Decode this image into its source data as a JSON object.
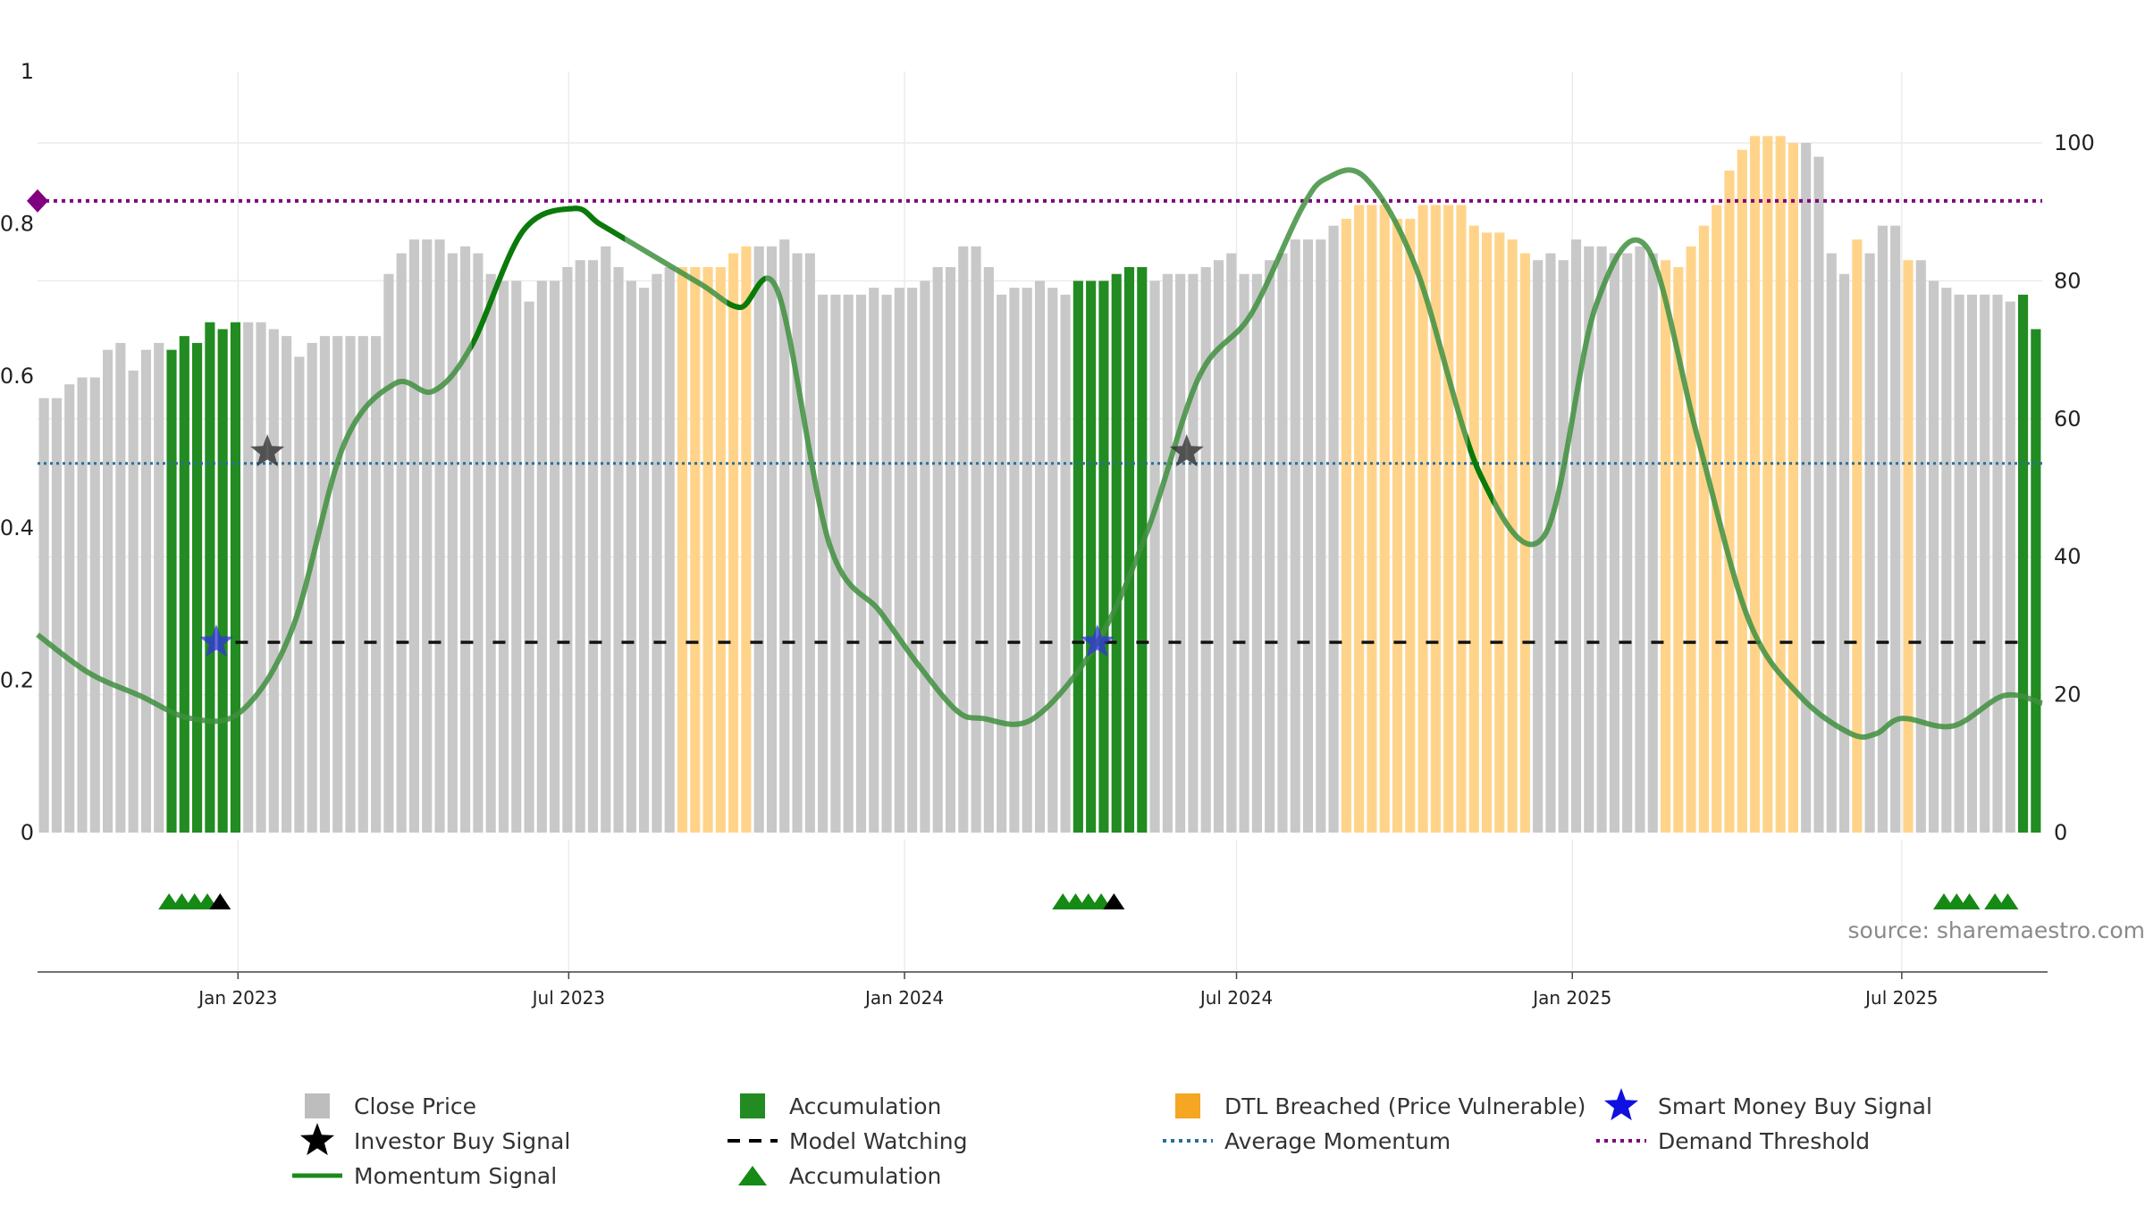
{
  "chart_data": {
    "type": "bar",
    "bars": {
      "count": 157,
      "close_price_right_axis": [
        63,
        63,
        65,
        66,
        66,
        70,
        71,
        67,
        70,
        71,
        70,
        72,
        71,
        74,
        73,
        74,
        74,
        74,
        73,
        72,
        69,
        71,
        72,
        72,
        72,
        72,
        72,
        81,
        84,
        86,
        86,
        86,
        84,
        85,
        84,
        81,
        80,
        80,
        77,
        80,
        80,
        82,
        83,
        83,
        85,
        82,
        80,
        79,
        81,
        82,
        82,
        82,
        82,
        82,
        84,
        85,
        85,
        85,
        86,
        84,
        84,
        78,
        78,
        78,
        78,
        79,
        78,
        79,
        79,
        80,
        82,
        82,
        85,
        85,
        82,
        78,
        79,
        79,
        80,
        79,
        78,
        80,
        80,
        80,
        81,
        82,
        82,
        80,
        81,
        81,
        81,
        82,
        83,
        84,
        81,
        81,
        83,
        84,
        86,
        86,
        86,
        88,
        89,
        91,
        91,
        91,
        89,
        89,
        91,
        91,
        91,
        91,
        88,
        87,
        87,
        86,
        84,
        83,
        84,
        83,
        86,
        85,
        85,
        84,
        84,
        85,
        84,
        83,
        82,
        85,
        88,
        91,
        96,
        99,
        101,
        101,
        101,
        100,
        100,
        98,
        84,
        81,
        86,
        84,
        88,
        88,
        83,
        83,
        80,
        79,
        78,
        78,
        78,
        78,
        77,
        78,
        73
      ],
      "category": [
        "grey",
        "grey",
        "grey",
        "grey",
        "grey",
        "grey",
        "grey",
        "grey",
        "grey",
        "grey",
        "green",
        "green",
        "green",
        "green",
        "green",
        "green",
        "grey",
        "grey",
        "grey",
        "grey",
        "grey",
        "grey",
        "grey",
        "grey",
        "grey",
        "grey",
        "grey",
        "grey",
        "grey",
        "grey",
        "grey",
        "grey",
        "grey",
        "grey",
        "grey",
        "grey",
        "grey",
        "grey",
        "grey",
        "grey",
        "grey",
        "grey",
        "grey",
        "grey",
        "grey",
        "grey",
        "grey",
        "grey",
        "grey",
        "grey",
        "orange",
        "orange",
        "orange",
        "orange",
        "orange",
        "orange",
        "grey",
        "grey",
        "grey",
        "grey",
        "grey",
        "grey",
        "grey",
        "grey",
        "grey",
        "grey",
        "grey",
        "grey",
        "grey",
        "grey",
        "grey",
        "grey",
        "grey",
        "grey",
        "grey",
        "grey",
        "grey",
        "grey",
        "grey",
        "grey",
        "grey",
        "green",
        "green",
        "green",
        "green",
        "green",
        "green",
        "grey",
        "grey",
        "grey",
        "grey",
        "grey",
        "grey",
        "grey",
        "grey",
        "grey",
        "grey",
        "grey",
        "grey",
        "grey",
        "grey",
        "grey",
        "orange",
        "orange",
        "orange",
        "orange",
        "orange",
        "orange",
        "orange",
        "orange",
        "orange",
        "orange",
        "orange",
        "orange",
        "orange",
        "orange",
        "orange",
        "grey",
        "grey",
        "grey",
        "grey",
        "grey",
        "grey",
        "grey",
        "grey",
        "grey",
        "grey",
        "orange",
        "orange",
        "orange",
        "orange",
        "orange",
        "orange",
        "orange",
        "orange",
        "orange",
        "orange",
        "orange",
        "grey",
        "grey",
        "grey",
        "grey",
        "orange",
        "grey",
        "grey",
        "grey",
        "orange",
        "grey",
        "grey",
        "grey",
        "grey",
        "grey",
        "grey",
        "grey",
        "grey",
        "green",
        "green",
        "green",
        "green",
        "green",
        "green"
      ]
    },
    "momentum_signal_left_axis": {
      "x": [
        0,
        4,
        8,
        12,
        16,
        20,
        24,
        28,
        31,
        34,
        38,
        42,
        44,
        47,
        52,
        55,
        58,
        62,
        66,
        69,
        72,
        74,
        78,
        83,
        87,
        91,
        95,
        99,
        101,
        104,
        108,
        113,
        118,
        122,
        126,
        130,
        134,
        138,
        142,
        144,
        146,
        150,
        154,
        157
      ],
      "y": [
        0.26,
        0.21,
        0.18,
        0.15,
        0.16,
        0.27,
        0.51,
        0.59,
        0.58,
        0.64,
        0.79,
        0.82,
        0.8,
        0.77,
        0.72,
        0.69,
        0.71,
        0.38,
        0.29,
        0.22,
        0.16,
        0.15,
        0.15,
        0.25,
        0.4,
        0.6,
        0.68,
        0.82,
        0.86,
        0.86,
        0.74,
        0.47,
        0.39,
        0.69,
        0.77,
        0.52,
        0.28,
        0.18,
        0.13,
        0.13,
        0.15,
        0.14,
        0.18,
        0.17
      ]
    },
    "green_segments_x": [
      [
        34,
        46
      ],
      [
        54,
        57
      ],
      [
        112,
        114
      ]
    ],
    "reference_lines": {
      "demand_threshold": 0.83,
      "average_momentum": 0.485,
      "model_watching": 0.25,
      "model_watching_start_x": 15
    },
    "markers": {
      "smart_money_buy": [
        {
          "x": 14,
          "y": 0.25
        },
        {
          "x": 83,
          "y": 0.25
        }
      ],
      "investor_buy": [
        {
          "x": 18,
          "y": 0.5
        },
        {
          "x": 90,
          "y": 0.5
        }
      ],
      "accumulation_triangles_green": [
        10,
        11,
        12,
        13,
        80,
        81,
        82,
        83,
        149,
        150,
        151,
        153,
        154
      ],
      "accumulation_triangles_black": [
        14,
        84
      ]
    },
    "x_ticks": [
      {
        "label": "Jan 2023",
        "x": 15.2
      },
      {
        "label": "Jul 2023",
        "x": 41.1
      },
      {
        "label": "Jan 2024",
        "x": 67.4
      },
      {
        "label": "Jul 2024",
        "x": 93.4
      },
      {
        "label": "Jan 2025",
        "x": 119.7
      },
      {
        "label": "Jul 2025",
        "x": 145.5
      }
    ],
    "left_axis": {
      "ticks": [
        "0",
        "0.2",
        "0.4",
        "0.6",
        "0.8",
        "1"
      ],
      "range": [
        0,
        1
      ]
    },
    "right_axis": {
      "ticks": [
        "0",
        "20",
        "40",
        "60",
        "80",
        "100"
      ],
      "range": [
        0,
        110
      ]
    },
    "grid": true,
    "legend_position": "bottom",
    "legend": [
      {
        "label": "Close Price",
        "symbol": "square",
        "color": "#bdbdbd"
      },
      {
        "label": "Accumulation",
        "symbol": "square",
        "color": "#228b22"
      },
      {
        "label": "DTL Breached (Price Vulnerable)",
        "symbol": "square",
        "color": "#f5a623"
      },
      {
        "label": "Smart Money Buy Signal",
        "symbol": "star",
        "color": "#1010e0"
      },
      {
        "label": "Investor Buy Signal",
        "symbol": "star",
        "color": "#000000"
      },
      {
        "label": "Model Watching",
        "symbol": "dash",
        "color": "#000000"
      },
      {
        "label": "Average Momentum",
        "symbol": "dot",
        "color": "#2a6f97"
      },
      {
        "label": "Demand Threshold",
        "symbol": "dot",
        "color": "#800080"
      },
      {
        "label": "Momentum Signal",
        "symbol": "line",
        "color": "#1a8a1a"
      },
      {
        "label": "Accumulation",
        "symbol": "triangle",
        "color": "#158a15"
      }
    ],
    "source": "source: sharemaestro.com"
  },
  "colors": {
    "grey_bar": "#c8c8c8",
    "green_bar": "#228b22",
    "orange_bar": "#ffd48a",
    "momentum": "#3f8f3f",
    "momentum_bright": "#0a7a0a",
    "demand": "#800080",
    "average": "#2a6f97",
    "grid": "#ebebeb"
  }
}
